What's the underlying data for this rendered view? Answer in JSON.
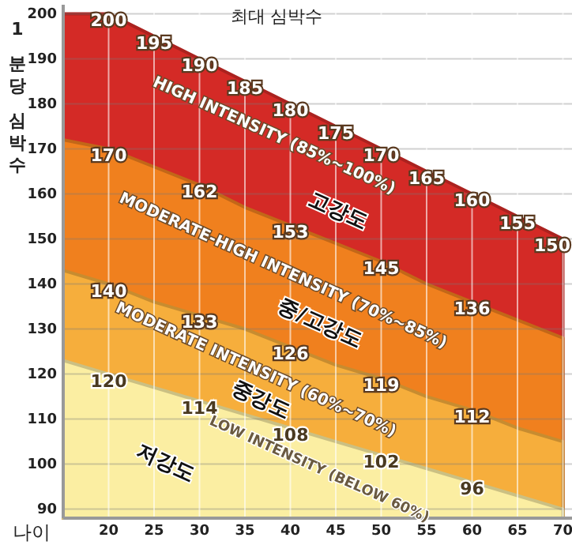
{
  "chart_data": {
    "type": "area",
    "title": "최대 심박수",
    "xlabel": "나이",
    "ylabel": "1 분당 심박수",
    "x": [
      15,
      20,
      25,
      30,
      35,
      40,
      45,
      50,
      55,
      60,
      65,
      70
    ],
    "series": [
      {
        "color": "#d42a26",
        "values": [
          200,
          200,
          195,
          190,
          185,
          180,
          175,
          170,
          165,
          160,
          155,
          150
        ],
        "value_labels": [
          null,
          "200",
          "195",
          "190",
          "185",
          "180",
          "175",
          "170",
          "165",
          "160",
          "155",
          "150"
        ]
      },
      {
        "color": "#f0801e",
        "values": [
          172,
          170,
          166,
          162,
          157,
          153,
          149,
          145,
          140,
          136,
          132,
          128
        ],
        "value_labels": [
          null,
          "170",
          null,
          "162",
          null,
          "153",
          null,
          "145",
          null,
          "136",
          null,
          null
        ]
      },
      {
        "color": "#f6ae3c",
        "values": [
          143,
          140,
          136,
          133,
          130,
          126,
          122,
          119,
          115,
          112,
          108,
          105
        ],
        "value_labels": [
          null,
          "140",
          null,
          "133",
          null,
          "126",
          null,
          "119",
          null,
          "112",
          null,
          null
        ]
      },
      {
        "color": "#fbeea2",
        "values": [
          123,
          120,
          117,
          114,
          111,
          108,
          105,
          102,
          99,
          96,
          93,
          90
        ],
        "value_labels": [
          null,
          "120",
          null,
          "114",
          null,
          "108",
          null,
          "102",
          null,
          "96",
          null,
          null
        ]
      }
    ],
    "annotations": [
      "HIGH INTENSITY (85%~100%)",
      "고강도",
      "MODERATE-HIGH INTENSITY (70%~85%)",
      "중/고강도",
      "MODERATE INTENSITY (60%~70%)",
      "중강도",
      "LOW INTENSITY (BELOW 60%)",
      "저강도"
    ],
    "xlim": [
      15,
      71
    ],
    "xticks": [
      20,
      25,
      30,
      35,
      40,
      45,
      50,
      55,
      60,
      65,
      70
    ],
    "ylim": [
      88,
      202
    ],
    "yticks": [
      90,
      100,
      110,
      120,
      130,
      140,
      150,
      160,
      170,
      180,
      190,
      200
    ],
    "grid": true
  }
}
